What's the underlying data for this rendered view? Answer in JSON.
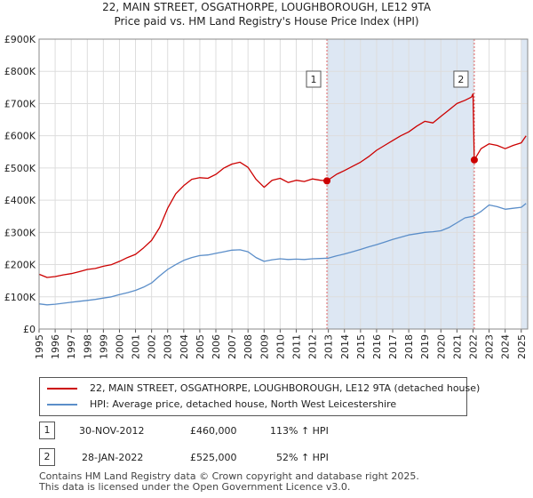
{
  "title_line1": "22, MAIN STREET, OSGATHORPE, LOUGHBOROUGH, LE12 9TA",
  "title_line2": "Price paid vs. HM Land Registry's House Price Index (HPI)",
  "legend": {
    "property_label": "22, MAIN STREET, OSGATHORPE, LOUGHBOROUGH, LE12 9TA (detached house)",
    "hpi_label": "HPI: Average price, detached house, North West Leicestershire"
  },
  "sales": [
    {
      "badge": "1",
      "date": "30-NOV-2012",
      "price": "£460,000",
      "hpi": "113% ↑ HPI"
    },
    {
      "badge": "2",
      "date": "28-JAN-2022",
      "price": "£525,000",
      "hpi": "52% ↑ HPI"
    }
  ],
  "footer": {
    "line1": "Contains HM Land Registry data © Crown copyright and database right 2025.",
    "line2": "This data is licensed under the Open Government Licence v3.0."
  },
  "colors": {
    "property": "#cc0000",
    "hpi": "#5b8ec9",
    "shade": "#dde7f3",
    "grid": "#dddddd",
    "vline": "#e06060"
  },
  "chart_data": {
    "type": "line",
    "title": "22, MAIN STREET, OSGATHORPE, LOUGHBOROUGH, LE12 9TA — Price paid vs. HM Land Registry's House Price Index (HPI)",
    "xlabel": "",
    "ylabel": "",
    "xlim": [
      1995,
      2025.4
    ],
    "ylim": [
      0,
      900000
    ],
    "y_ticks": [
      {
        "value": 0,
        "label": "£0"
      },
      {
        "value": 100000,
        "label": "£100K"
      },
      {
        "value": 200000,
        "label": "£200K"
      },
      {
        "value": 300000,
        "label": "£300K"
      },
      {
        "value": 400000,
        "label": "£400K"
      },
      {
        "value": 500000,
        "label": "£500K"
      },
      {
        "value": 600000,
        "label": "£600K"
      },
      {
        "value": 700000,
        "label": "£700K"
      },
      {
        "value": 800000,
        "label": "£800K"
      },
      {
        "value": 900000,
        "label": "£900K"
      }
    ],
    "x_ticks": [
      1995,
      1996,
      1997,
      1998,
      1999,
      2000,
      2001,
      2002,
      2003,
      2004,
      2005,
      2006,
      2007,
      2008,
      2009,
      2010,
      2011,
      2012,
      2013,
      2014,
      2015,
      2016,
      2017,
      2018,
      2019,
      2020,
      2021,
      2022,
      2023,
      2024,
      2025
    ],
    "shaded_regions": [
      {
        "from": 2012.91,
        "to": 2022.08
      },
      {
        "from": 2025.0,
        "to": 2025.4
      }
    ],
    "series": [
      {
        "name": "22, MAIN STREET, OSGATHORPE, LOUGHBOROUGH, LE12 9TA (detached house)",
        "x": [
          1995.0,
          1995.5,
          1996.0,
          1996.5,
          1997.0,
          1997.5,
          1998.0,
          1998.5,
          1999.0,
          1999.5,
          2000.0,
          2000.5,
          2001.0,
          2001.5,
          2002.0,
          2002.5,
          2003.0,
          2003.5,
          2004.0,
          2004.5,
          2005.0,
          2005.5,
          2006.0,
          2006.5,
          2007.0,
          2007.5,
          2008.0,
          2008.5,
          2009.0,
          2009.5,
          2010.0,
          2010.5,
          2011.0,
          2011.5,
          2012.0,
          2012.5,
          2012.91,
          2013.5,
          2014.0,
          2014.5,
          2015.0,
          2015.5,
          2016.0,
          2016.5,
          2017.0,
          2017.5,
          2018.0,
          2018.5,
          2019.0,
          2019.5,
          2020.0,
          2020.5,
          2021.0,
          2021.5,
          2021.9,
          2022.0,
          2022.08,
          2022.5,
          2023.0,
          2023.5,
          2024.0,
          2024.5,
          2025.0,
          2025.3
        ],
        "values": [
          170000,
          160000,
          163000,
          168000,
          172000,
          178000,
          185000,
          188000,
          195000,
          200000,
          210000,
          222000,
          232000,
          252000,
          275000,
          315000,
          375000,
          420000,
          445000,
          465000,
          470000,
          468000,
          480000,
          500000,
          512000,
          518000,
          502000,
          465000,
          440000,
          462000,
          468000,
          455000,
          462000,
          458000,
          466000,
          462000,
          460000,
          480000,
          492000,
          505000,
          518000,
          535000,
          555000,
          570000,
          585000,
          600000,
          612000,
          630000,
          645000,
          640000,
          660000,
          680000,
          700000,
          710000,
          720000,
          730000,
          525000,
          560000,
          575000,
          570000,
          560000,
          570000,
          578000,
          600000
        ]
      },
      {
        "name": "HPI: Average price, detached house, North West Leicestershire",
        "x": [
          1995.0,
          1995.5,
          1996.0,
          1996.5,
          1997.0,
          1997.5,
          1998.0,
          1998.5,
          1999.0,
          1999.5,
          2000.0,
          2000.5,
          2001.0,
          2001.5,
          2002.0,
          2002.5,
          2003.0,
          2003.5,
          2004.0,
          2004.5,
          2005.0,
          2005.5,
          2006.0,
          2006.5,
          2007.0,
          2007.5,
          2008.0,
          2008.5,
          2009.0,
          2009.5,
          2010.0,
          2010.5,
          2011.0,
          2011.5,
          2012.0,
          2012.5,
          2013.0,
          2013.5,
          2014.0,
          2014.5,
          2015.0,
          2015.5,
          2016.0,
          2016.5,
          2017.0,
          2017.5,
          2018.0,
          2018.5,
          2019.0,
          2019.5,
          2020.0,
          2020.5,
          2021.0,
          2021.5,
          2022.0,
          2022.5,
          2023.0,
          2023.5,
          2024.0,
          2024.5,
          2025.0,
          2025.3
        ],
        "values": [
          78000,
          75000,
          77000,
          80000,
          83000,
          86000,
          89000,
          92000,
          96000,
          100000,
          107000,
          113000,
          120000,
          130000,
          143000,
          165000,
          185000,
          200000,
          213000,
          222000,
          228000,
          230000,
          235000,
          240000,
          245000,
          246000,
          240000,
          222000,
          210000,
          215000,
          218000,
          216000,
          217000,
          216000,
          218000,
          219000,
          220000,
          227000,
          233000,
          240000,
          247000,
          255000,
          262000,
          270000,
          278000,
          285000,
          292000,
          296000,
          300000,
          302000,
          305000,
          315000,
          330000,
          345000,
          350000,
          365000,
          385000,
          380000,
          372000,
          375000,
          378000,
          390000
        ]
      }
    ],
    "annotations": [
      {
        "label": "1",
        "x": 2012.91,
        "y": 460000
      },
      {
        "label": "2",
        "x": 2022.08,
        "y": 525000
      }
    ]
  }
}
